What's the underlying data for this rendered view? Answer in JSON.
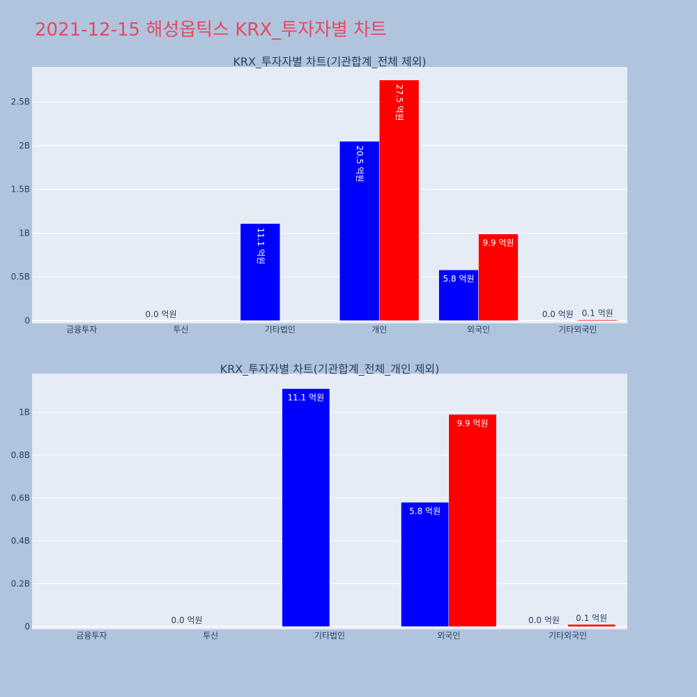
{
  "page_title": "2021-12-15 해성옵틱스 KRX_투자자별 차트",
  "colors": {
    "background": "#b0c4de",
    "plot_bg": "#e5ecf6",
    "title": "#e8475f",
    "text": "#2a3f5f",
    "series_1": "#0000ff",
    "series_2": "#ff0000"
  },
  "chart_data": [
    {
      "type": "bar",
      "title": "KRX_투자자별 차트(기관합계_전체 제외)",
      "categories": [
        "금융투자",
        "투신",
        "기타법인",
        "개인",
        "외국인",
        "기타외국인"
      ],
      "series": [
        {
          "color": "#0000ff",
          "values": [
            0,
            0,
            1110000000,
            2050000000,
            580000000,
            0
          ],
          "labels": [
            "",
            "0.0 억원",
            "11.1 억원",
            "20.5 억원",
            "5.8 억원",
            "0.0 억원"
          ]
        },
        {
          "color": "#ff0000",
          "values": [
            0,
            0,
            0,
            2750000000,
            990000000,
            10000000
          ],
          "labels": [
            "",
            "",
            "",
            "27.5 억원",
            "9.9 억원",
            "0.1 억원"
          ]
        }
      ],
      "yticks": [
        {
          "value": 0,
          "label": "0"
        },
        {
          "value": 500000000,
          "label": "0.5B"
        },
        {
          "value": 1000000000,
          "label": "1B"
        },
        {
          "value": 1500000000,
          "label": "1.5B"
        },
        {
          "value": 2000000000,
          "label": "2B"
        },
        {
          "value": 2500000000,
          "label": "2.5B"
        }
      ],
      "ylim": [
        0,
        2900000000
      ],
      "grid": true,
      "legend": "none"
    },
    {
      "type": "bar",
      "title": "KRX_투자자별 차트(기관합계_전체_개인 제외)",
      "categories": [
        "금융투자",
        "투신",
        "기타법인",
        "외국인",
        "기타외국인"
      ],
      "series": [
        {
          "color": "#0000ff",
          "values": [
            0,
            0,
            1110000000,
            580000000,
            0
          ],
          "labels": [
            "",
            "0.0 억원",
            "11.1 억원",
            "5.8 억원",
            "0.0 억원"
          ]
        },
        {
          "color": "#ff0000",
          "values": [
            0,
            0,
            0,
            990000000,
            10000000
          ],
          "labels": [
            "",
            "",
            "",
            "9.9 억원",
            "0.1 억원"
          ]
        }
      ],
      "yticks": [
        {
          "value": 0,
          "label": "0"
        },
        {
          "value": 200000000,
          "label": "0.2B"
        },
        {
          "value": 400000000,
          "label": "0.4B"
        },
        {
          "value": 600000000,
          "label": "0.6B"
        },
        {
          "value": 800000000,
          "label": "0.8B"
        },
        {
          "value": 1000000000,
          "label": "1B"
        }
      ],
      "ylim": [
        0,
        1180000000
      ],
      "grid": true,
      "legend": "none"
    }
  ]
}
